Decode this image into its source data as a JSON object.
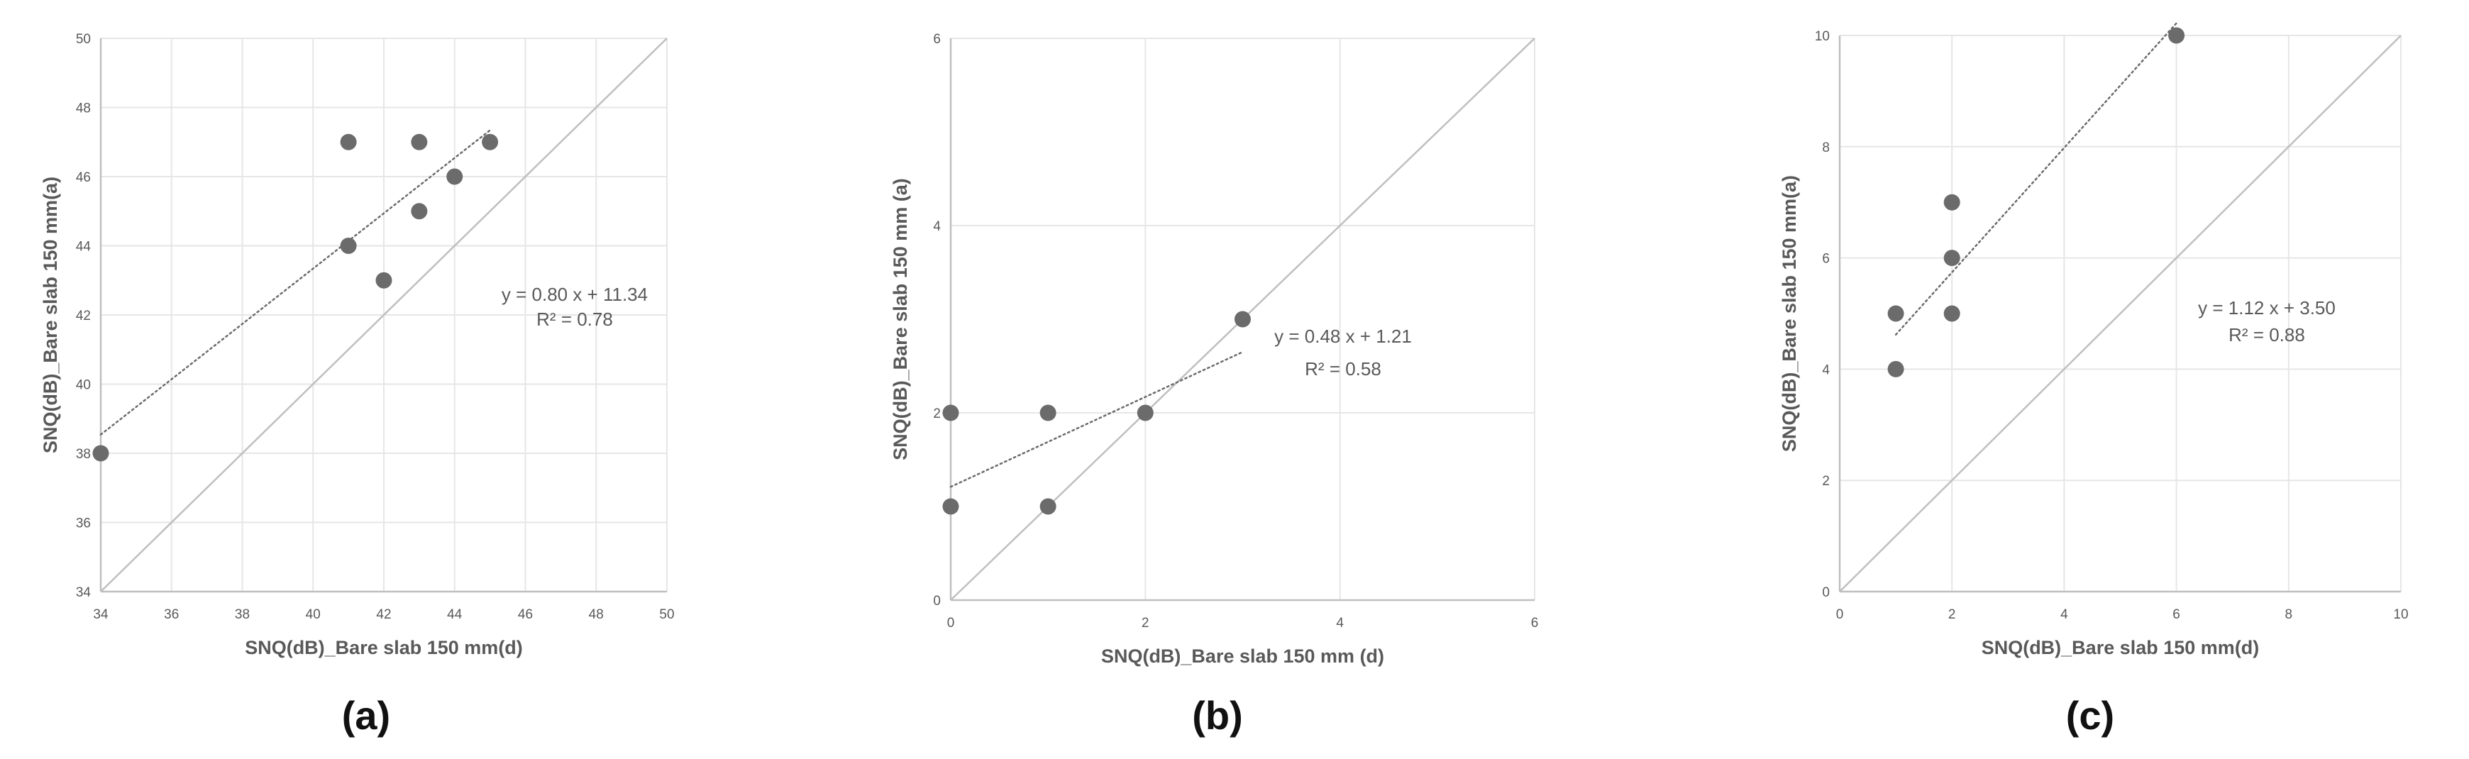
{
  "colors": {
    "background": "#ffffff",
    "grid": "#e6e6e6",
    "axis": "#bfbfbf",
    "identity_line": "#bfbfbf",
    "marker": "#6b6b6b",
    "trendline": "#6b6b6b",
    "text": "#595959",
    "panel_label": "#111111"
  },
  "chart_data": [
    {
      "type": "scatter",
      "panel_label": "(a)",
      "xlabel": "SNQ(dB)_Bare slab 150 mm(d)",
      "ylabel": "SNQ(dB)_Bare slab 150 mm(a)",
      "xlim": [
        34,
        50
      ],
      "ylim": [
        34,
        50
      ],
      "xticks": [
        34,
        36,
        38,
        40,
        42,
        44,
        46,
        48,
        50
      ],
      "yticks": [
        34,
        36,
        38,
        40,
        42,
        44,
        46,
        48,
        50
      ],
      "grid": true,
      "reference_line": "y = x",
      "points": [
        {
          "x": 34,
          "y": 38
        },
        {
          "x": 41,
          "y": 47
        },
        {
          "x": 41,
          "y": 44
        },
        {
          "x": 42,
          "y": 43
        },
        {
          "x": 43,
          "y": 47
        },
        {
          "x": 43,
          "y": 45
        },
        {
          "x": 44,
          "y": 46
        },
        {
          "x": 45,
          "y": 47
        }
      ],
      "trendline": {
        "slope": 0.8,
        "intercept": 11.34,
        "x_range": [
          34,
          45
        ],
        "style": "dotted"
      },
      "annotation": {
        "equation": "y = 0.80 x + 11.34",
        "r2": "R² = 0.78"
      }
    },
    {
      "type": "scatter",
      "panel_label": "(b)",
      "xlabel": "SNQ(dB)_Bare slab 150 mm (d)",
      "ylabel": "SNQ(dB)_Bare slab 150 mm (a)",
      "xlim": [
        0,
        6
      ],
      "ylim": [
        0,
        6
      ],
      "xticks": [
        0,
        2,
        4,
        6
      ],
      "yticks": [
        0,
        2,
        4,
        6
      ],
      "grid": true,
      "reference_line": "y = x",
      "points": [
        {
          "x": 0,
          "y": 2
        },
        {
          "x": 0,
          "y": 1
        },
        {
          "x": 1,
          "y": 2
        },
        {
          "x": 1,
          "y": 1
        },
        {
          "x": 2,
          "y": 2
        },
        {
          "x": 3,
          "y": 3
        }
      ],
      "trendline": {
        "slope": 0.48,
        "intercept": 1.21,
        "x_range": [
          0,
          3
        ],
        "style": "dotted"
      },
      "annotation": {
        "equation": "y = 0.48 x + 1.21",
        "r2": "R² = 0.58"
      }
    },
    {
      "type": "scatter",
      "panel_label": "(c)",
      "xlabel": "SNQ(dB)_Bare slab 150 mm(d)",
      "ylabel": "SNQ(dB)_Bare slab 150 mm(a)",
      "xlim": [
        0,
        10
      ],
      "ylim": [
        0,
        10
      ],
      "xticks": [
        0,
        2,
        4,
        6,
        8,
        10
      ],
      "yticks": [
        0,
        2,
        4,
        6,
        8,
        10
      ],
      "grid": true,
      "reference_line": "y = x",
      "points": [
        {
          "x": 1,
          "y": 5
        },
        {
          "x": 1,
          "y": 4
        },
        {
          "x": 2,
          "y": 7
        },
        {
          "x": 2,
          "y": 6
        },
        {
          "x": 2,
          "y": 5
        },
        {
          "x": 6,
          "y": 10
        }
      ],
      "trendline": {
        "slope": 1.12,
        "intercept": 3.5,
        "x_range": [
          1,
          6
        ],
        "style": "dotted"
      },
      "annotation": {
        "equation": "y = 1.12 x + 3.50",
        "r2": "R² = 0.88"
      }
    }
  ]
}
